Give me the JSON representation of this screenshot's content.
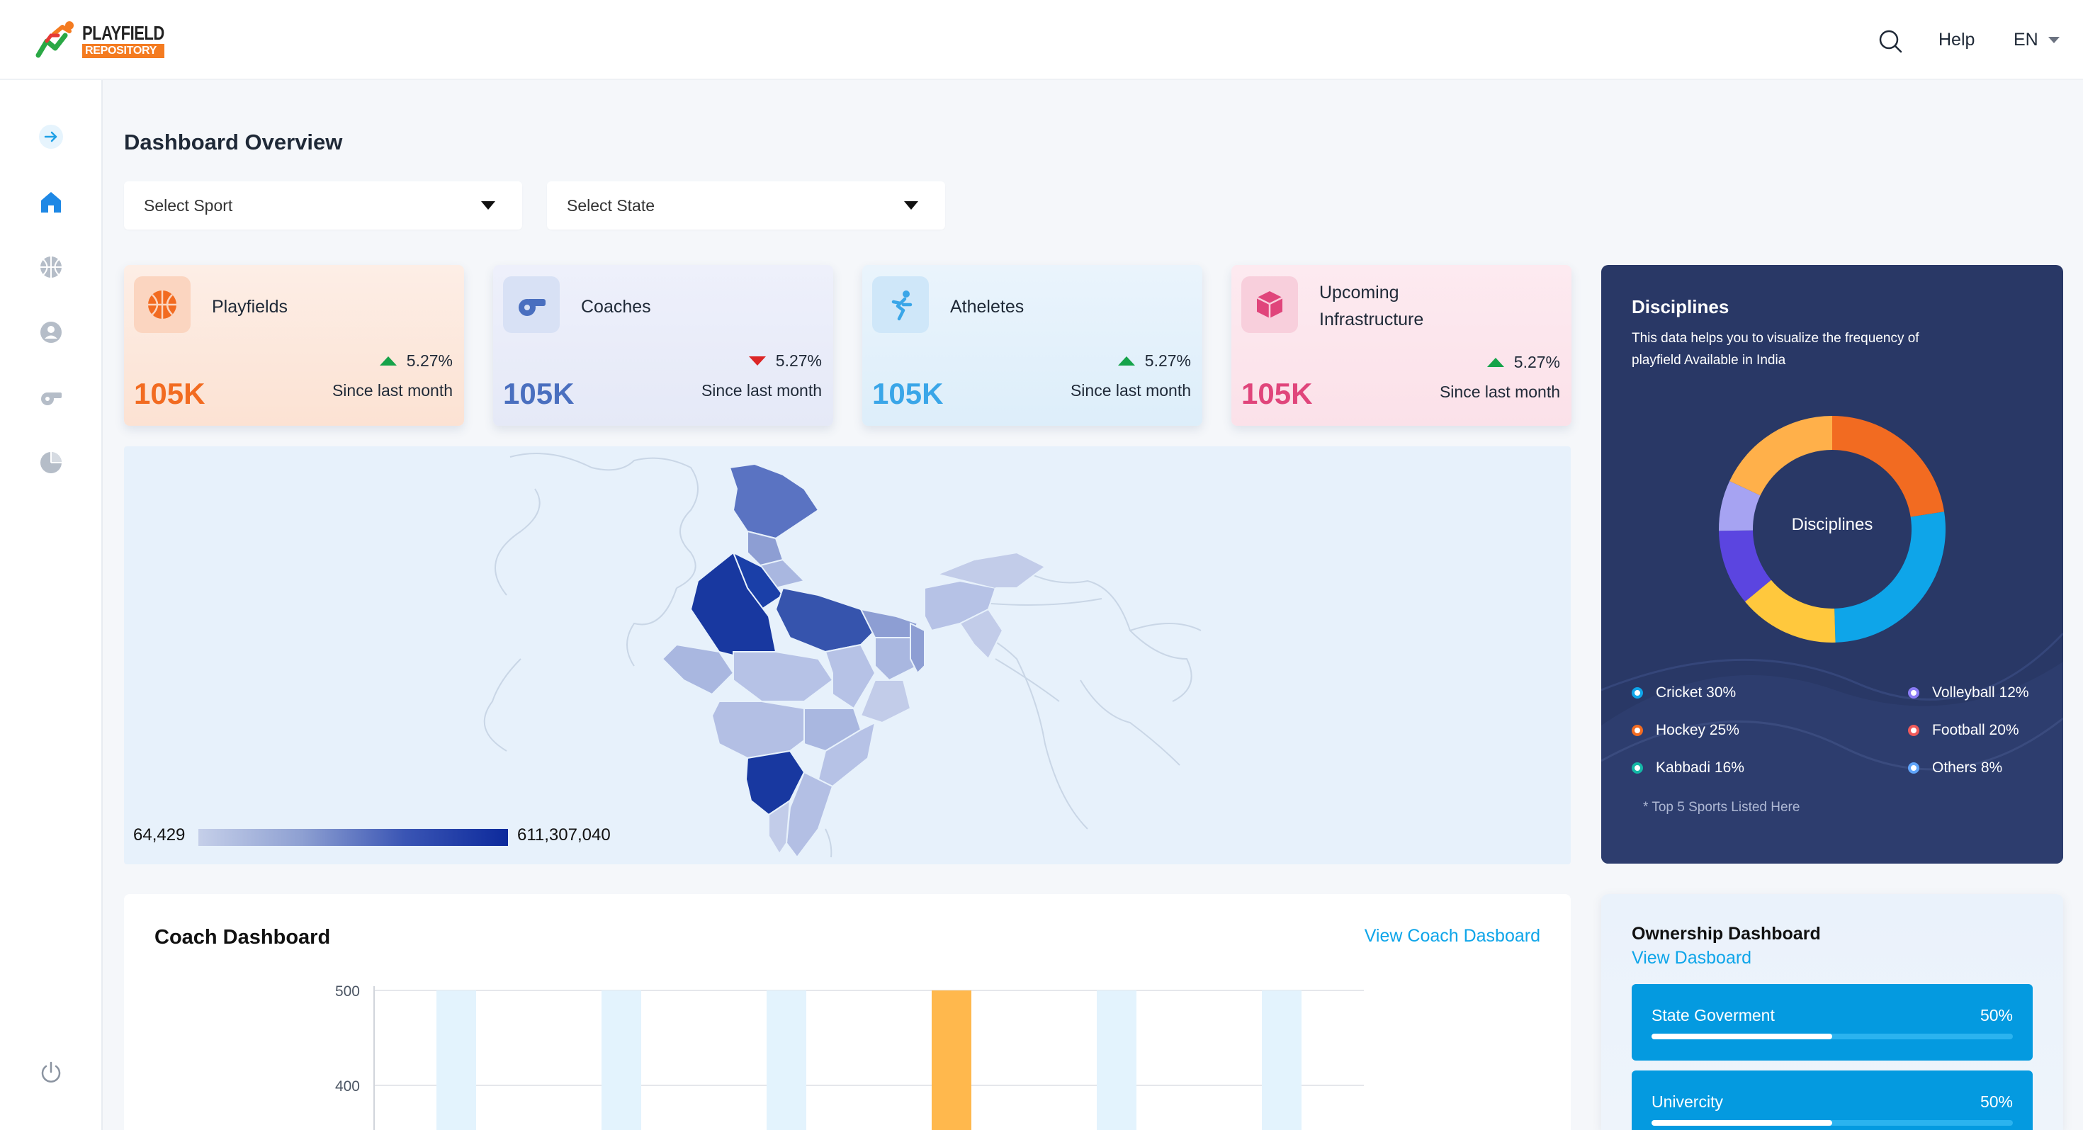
{
  "header": {
    "logo_line1": "PLAYFIELD",
    "logo_line2": "REPOSITORY",
    "help": "Help",
    "language": "EN",
    "icons": [
      "search-icon",
      "chevron-down-icon"
    ]
  },
  "sidebar": {
    "items": [
      {
        "name": "expand",
        "icon": "arrow-right-icon"
      },
      {
        "name": "home",
        "icon": "home-icon",
        "active": true
      },
      {
        "name": "sports",
        "icon": "basketball-icon"
      },
      {
        "name": "profile",
        "icon": "user-icon"
      },
      {
        "name": "coaches",
        "icon": "whistle-icon"
      },
      {
        "name": "reports",
        "icon": "pie-chart-icon"
      }
    ],
    "footer_icon": "power-icon"
  },
  "page": {
    "title": "Dashboard Overview",
    "select_sport": "Select Sport",
    "select_state": "Select State"
  },
  "stats": [
    {
      "title": "Playfields",
      "pct": "5.27%",
      "trend": "up",
      "since": "Since last month",
      "value": "105K",
      "color": "#f26b21",
      "icon": "basketball-icon"
    },
    {
      "title": "Coaches",
      "pct": "5.27%",
      "trend": "down",
      "since": "Since last month",
      "value": "105K",
      "color": "#4a6fbf",
      "icon": "whistle-icon"
    },
    {
      "title": "Atheletes",
      "pct": "5.27%",
      "trend": "up",
      "since": "Since last month",
      "value": "105K",
      "color": "#3aa6e8",
      "icon": "runner-icon"
    },
    {
      "title_line1": "Upcoming",
      "title_line2": "Infrastructure",
      "pct": "5.27%",
      "trend": "up",
      "since": "Since last month",
      "value": "105K",
      "color": "#e0457b",
      "icon": "cube-icon"
    }
  ],
  "map": {
    "legend_min": "64,429",
    "legend_max": "611,307,040"
  },
  "disciplines": {
    "title": "Disciplines",
    "subtitle": "This data helps you to visualize the frequency of playfield Available in India",
    "center_label": "Disciplines",
    "segments": [
      {
        "label": "Cricket 30%",
        "value": 30,
        "color": "#0ea5e9"
      },
      {
        "label": "Hockey 25%",
        "value": 25,
        "color": "#f26b21"
      },
      {
        "label": "Kabbadi 16%",
        "value": 16,
        "color": "#ffc83d"
      },
      {
        "label": "Volleyball 12%",
        "value": 12,
        "color": "#5b45e0"
      },
      {
        "label": "Football 20%",
        "value": 20,
        "color": "#ffb04a"
      },
      {
        "label": "Others 8%",
        "value": 8,
        "color": "#a6a3f2"
      }
    ],
    "note": "* Top 5 Sports Listed Here"
  },
  "coach": {
    "title": "Coach Dashboard",
    "link": "View Coach Dasboard",
    "y_ticks": [
      "500",
      "400"
    ],
    "highlight_color": "#ffb84d",
    "bar_color": "#e3f3fd"
  },
  "ownership": {
    "title": "Ownership Dashboard",
    "link": "View Dasboard",
    "items": [
      {
        "label": "State Goverment",
        "pct": "50%",
        "value": 0.5
      },
      {
        "label": "Univercity",
        "pct": "50%",
        "value": 0.5
      }
    ]
  }
}
